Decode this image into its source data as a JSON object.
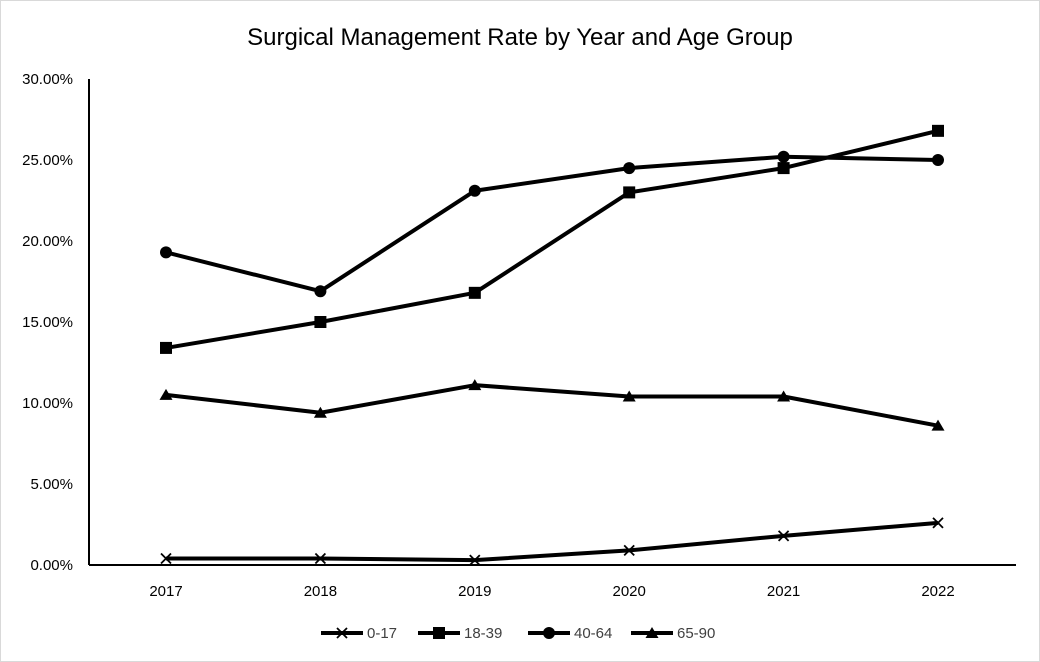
{
  "chart_data": {
    "type": "line",
    "title": "Surgical Management Rate by Year and Age Group",
    "xlabel": "",
    "ylabel": "",
    "x": [
      "2017",
      "2018",
      "2019",
      "2020",
      "2021",
      "2022"
    ],
    "ylim": [
      0,
      30
    ],
    "y_ticks": [
      "0.00%",
      "5.00%",
      "10.00%",
      "15.00%",
      "20.00%",
      "25.00%",
      "30.00%"
    ],
    "grid": false,
    "legend_position": "bottom",
    "series": [
      {
        "name": "0-17",
        "marker": "x",
        "values": [
          0.4,
          0.4,
          0.3,
          0.9,
          1.8,
          2.6
        ]
      },
      {
        "name": "18-39",
        "marker": "square",
        "values": [
          13.4,
          15.0,
          16.8,
          23.0,
          24.5,
          26.8
        ]
      },
      {
        "name": "40-64",
        "marker": "circle",
        "values": [
          19.3,
          16.9,
          23.1,
          24.5,
          25.2,
          25.0
        ]
      },
      {
        "name": "65-90",
        "marker": "triangle",
        "values": [
          10.5,
          9.4,
          11.1,
          10.4,
          10.4,
          8.6
        ]
      }
    ],
    "colors": {
      "line": "#000000",
      "axis": "#000000",
      "text": "#000000",
      "legend_text": "#404040"
    }
  }
}
